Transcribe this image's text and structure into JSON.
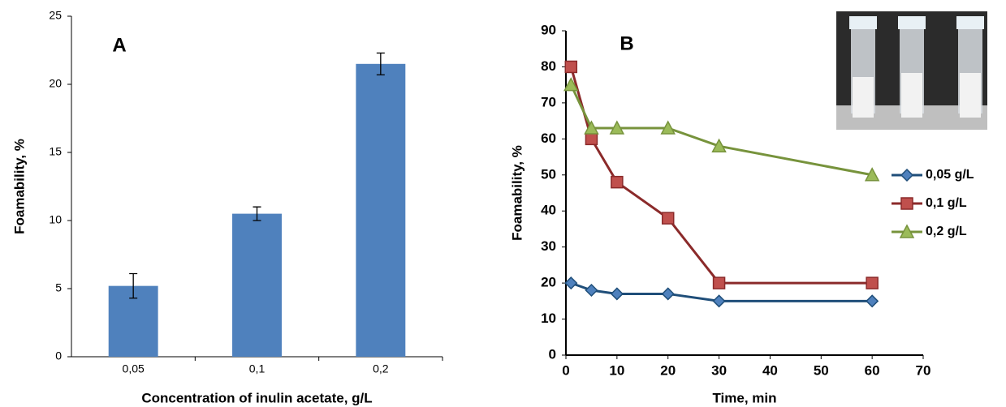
{
  "chart_data": [
    {
      "type": "bar",
      "title": "A",
      "y_label": "Foamability, %",
      "x_label": "Concentration of inulin acetate, g/L",
      "categories": [
        "0,05",
        "0,1",
        "0,2"
      ],
      "values": [
        5.2,
        10.5,
        21.5
      ],
      "errors": [
        0.9,
        0.5,
        0.8
      ],
      "color": "#4f81bd",
      "ylim": [
        0,
        25
      ],
      "yticks": [
        0,
        5,
        10,
        15,
        20,
        25
      ],
      "grid": false
    },
    {
      "type": "line",
      "title": "B",
      "y_label": "Foamability, %",
      "x_label": "Time, min",
      "x": [
        1,
        5,
        10,
        20,
        30,
        60
      ],
      "series": [
        {
          "name": "0,05 g/L",
          "color": "#1f4e79",
          "marker_color": "#4f81bd",
          "marker": "diamond",
          "values": [
            20,
            18,
            17,
            17,
            15,
            15
          ]
        },
        {
          "name": "0,1 g/L",
          "color": "#8b2a2a",
          "marker_color": "#c0504d",
          "marker": "square",
          "values": [
            80,
            60,
            48,
            38,
            20,
            20
          ]
        },
        {
          "name": "0,2 g/L",
          "color": "#77933c",
          "marker_color": "#9bbb59",
          "marker": "triangle",
          "values": [
            75,
            63,
            63,
            63,
            58,
            50
          ]
        }
      ],
      "xlim": [
        0,
        70
      ],
      "xticks": [
        0,
        10,
        20,
        30,
        40,
        50,
        60,
        70
      ],
      "ylim": [
        0,
        90
      ],
      "yticks": [
        0,
        10,
        20,
        30,
        40,
        50,
        60,
        70,
        80,
        90
      ],
      "grid": false,
      "legend": "right"
    }
  ]
}
